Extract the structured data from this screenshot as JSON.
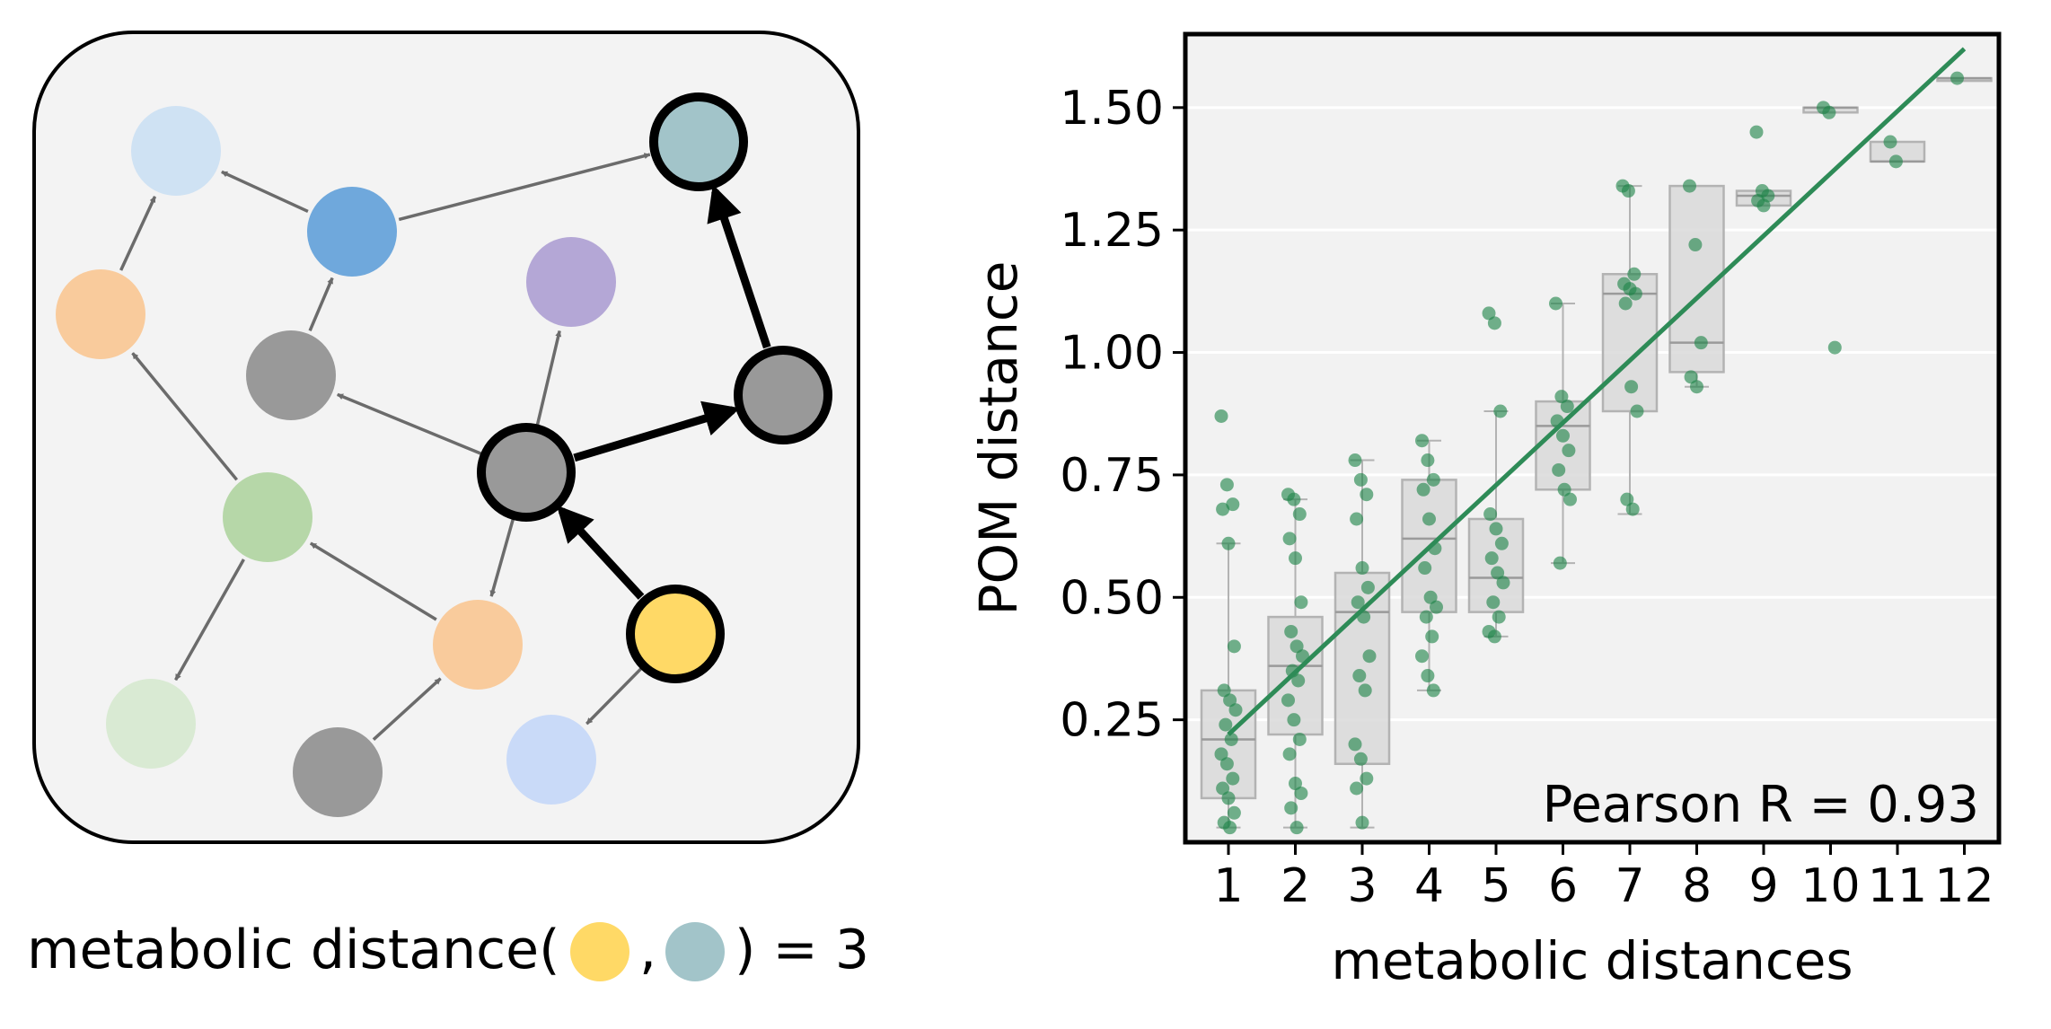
{
  "diagram": {
    "caption": {
      "prefix": "metabolic distance(",
      "separator": ",",
      "suffix": ") = 3",
      "from_color": "#ffd966",
      "to_color": "#a2c4c9"
    },
    "colors": {
      "panel": "#f3f3f3",
      "edge": "#6b6b6b",
      "path": "#000000"
    },
    "nodes": [
      {
        "id": "light-blue",
        "color": "#cfe2f3",
        "highlight": false
      },
      {
        "id": "blue",
        "color": "#6fa8dc",
        "highlight": false
      },
      {
        "id": "teal-target",
        "color": "#a2c4c9",
        "highlight": true
      },
      {
        "id": "orange-left",
        "color": "#f9cb9c",
        "highlight": false
      },
      {
        "id": "purple",
        "color": "#b4a7d6",
        "highlight": false
      },
      {
        "id": "gray-upper",
        "color": "#999999",
        "highlight": false
      },
      {
        "id": "gray-right",
        "color": "#999999",
        "highlight": true
      },
      {
        "id": "gray-center",
        "color": "#999999",
        "highlight": true
      },
      {
        "id": "green",
        "color": "#b6d7a8",
        "highlight": false
      },
      {
        "id": "orange-lower",
        "color": "#f9cb9c",
        "highlight": false
      },
      {
        "id": "yellow-source",
        "color": "#ffd966",
        "highlight": true
      },
      {
        "id": "light-green",
        "color": "#d9ead3",
        "highlight": false
      },
      {
        "id": "gray-bottom",
        "color": "#999999",
        "highlight": false
      },
      {
        "id": "periwinkle",
        "color": "#c9daf8",
        "highlight": false
      }
    ],
    "edges": [
      {
        "from": "orange-left",
        "to": "light-blue",
        "path": false
      },
      {
        "from": "blue",
        "to": "light-blue",
        "path": false
      },
      {
        "from": "blue",
        "to": "teal-target",
        "path": false
      },
      {
        "from": "gray-upper",
        "to": "blue",
        "path": false
      },
      {
        "from": "green",
        "to": "orange-left",
        "path": false
      },
      {
        "from": "gray-center",
        "to": "gray-upper",
        "path": false
      },
      {
        "from": "gray-center",
        "to": "purple",
        "path": false
      },
      {
        "from": "green",
        "to": "light-green",
        "path": false
      },
      {
        "from": "orange-lower",
        "to": "green",
        "path": false
      },
      {
        "from": "gray-center",
        "to": "orange-lower",
        "path": false
      },
      {
        "from": "gray-bottom",
        "to": "orange-lower",
        "path": false
      },
      {
        "from": "yellow-source",
        "to": "periwinkle",
        "path": false
      },
      {
        "from": "yellow-source",
        "to": "gray-center",
        "path": true
      },
      {
        "from": "gray-center",
        "to": "gray-right",
        "path": true
      },
      {
        "from": "gray-right",
        "to": "teal-target",
        "path": true
      }
    ]
  },
  "chart_data": {
    "type": "box",
    "title": "",
    "xlabel": "metabolic distances",
    "ylabel": "POM distance",
    "categories": [
      "1",
      "2",
      "3",
      "4",
      "5",
      "6",
      "7",
      "8",
      "9",
      "10",
      "11",
      "12"
    ],
    "yticks": [
      "0.25",
      "0.50",
      "0.75",
      "1.00",
      "1.25",
      "1.50"
    ],
    "ylim": [
      0.0,
      1.65
    ],
    "grid": "horizontal",
    "annotation": "Pearson R = 0.93",
    "colors": {
      "points": "#1e8449",
      "fit_line": "#2e8b57",
      "box_fill": "#d9d9d9",
      "box_edge": "#b3b3b3",
      "background": "#f2f2f2"
    },
    "boxes": [
      {
        "q1": 0.09,
        "median": 0.21,
        "q3": 0.31,
        "whisker_low": 0.03,
        "whisker_high": 0.61
      },
      {
        "q1": 0.22,
        "median": 0.36,
        "q3": 0.46,
        "whisker_low": 0.03,
        "whisker_high": 0.7
      },
      {
        "q1": 0.16,
        "median": 0.47,
        "q3": 0.55,
        "whisker_low": 0.03,
        "whisker_high": 0.78
      },
      {
        "q1": 0.47,
        "median": 0.62,
        "q3": 0.74,
        "whisker_low": 0.31,
        "whisker_high": 0.82
      },
      {
        "q1": 0.47,
        "median": 0.54,
        "q3": 0.66,
        "whisker_low": 0.42,
        "whisker_high": 0.88
      },
      {
        "q1": 0.72,
        "median": 0.85,
        "q3": 0.9,
        "whisker_low": 0.57,
        "whisker_high": 1.1
      },
      {
        "q1": 0.88,
        "median": 1.12,
        "q3": 1.16,
        "whisker_low": 0.67,
        "whisker_high": 1.34
      },
      {
        "q1": 0.96,
        "median": 1.02,
        "q3": 1.34,
        "whisker_low": 0.93,
        "whisker_high": 1.34
      },
      {
        "q1": 1.3,
        "median": 1.32,
        "q3": 1.33,
        "whisker_low": 1.3,
        "whisker_high": 1.33
      },
      {
        "q1": 1.49,
        "median": 1.5,
        "q3": 1.5,
        "whisker_low": 1.49,
        "whisker_high": 1.5
      },
      {
        "q1": 1.39,
        "median": 1.39,
        "q3": 1.43,
        "whisker_low": 1.39,
        "whisker_high": 1.43
      },
      {
        "q1": 1.56,
        "median": 1.56,
        "q3": 1.56,
        "whisker_low": 1.56,
        "whisker_high": 1.56
      }
    ],
    "points": [
      [
        0.87,
        0.73,
        0.69,
        0.68,
        0.61,
        0.4,
        0.31,
        0.29,
        0.27,
        0.24,
        0.21,
        0.18,
        0.16,
        0.13,
        0.11,
        0.09,
        0.06,
        0.04,
        0.03
      ],
      [
        0.71,
        0.7,
        0.67,
        0.62,
        0.58,
        0.49,
        0.43,
        0.4,
        0.38,
        0.35,
        0.33,
        0.29,
        0.25,
        0.21,
        0.18,
        0.12,
        0.1,
        0.07,
        0.03
      ],
      [
        0.78,
        0.74,
        0.71,
        0.66,
        0.56,
        0.52,
        0.49,
        0.46,
        0.38,
        0.34,
        0.31,
        0.2,
        0.17,
        0.13,
        0.11,
        0.04
      ],
      [
        0.82,
        0.78,
        0.74,
        0.72,
        0.66,
        0.6,
        0.56,
        0.5,
        0.48,
        0.46,
        0.42,
        0.38,
        0.34,
        0.31
      ],
      [
        1.08,
        1.06,
        0.88,
        0.67,
        0.64,
        0.61,
        0.58,
        0.55,
        0.53,
        0.49,
        0.46,
        0.43,
        0.42
      ],
      [
        1.1,
        0.91,
        0.89,
        0.86,
        0.83,
        0.8,
        0.76,
        0.72,
        0.7,
        0.57
      ],
      [
        1.34,
        1.33,
        1.16,
        1.14,
        1.13,
        1.12,
        1.1,
        0.93,
        0.88,
        0.7,
        0.68
      ],
      [
        1.34,
        1.22,
        1.02,
        0.95,
        0.93
      ],
      [
        1.45,
        1.33,
        1.32,
        1.31,
        1.3
      ],
      [
        1.5,
        1.49,
        1.01
      ],
      [
        1.43,
        1.39
      ],
      [
        1.56
      ]
    ],
    "fit_line": {
      "x": [
        1,
        12
      ],
      "y": [
        0.22,
        1.62
      ]
    }
  }
}
